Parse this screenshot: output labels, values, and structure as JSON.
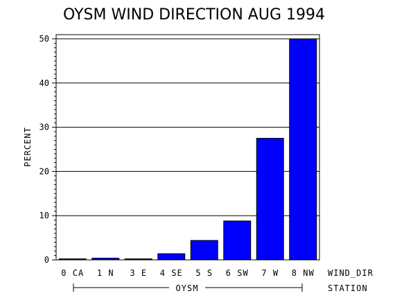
{
  "chart_data": {
    "type": "bar",
    "title": "OYSM WIND DIRECTION AUG 1994",
    "ylabel": "PERCENT",
    "xlabel": "WIND_DIR",
    "group_label": "OYSM",
    "group_axis_label": "STATION",
    "categories": [
      "0 CA",
      "1 N",
      "3 E",
      "4 SE",
      "5 S",
      "6 SW",
      "7 W",
      "8 NW"
    ],
    "values": [
      0.2,
      0.4,
      0.2,
      1.4,
      4.4,
      8.8,
      27.5,
      50.0
    ],
    "ylim": [
      0,
      50
    ],
    "yticks": [
      "0",
      "10",
      "20",
      "30",
      "40",
      "50"
    ],
    "grid": true,
    "bar_color": "#0000ff"
  }
}
